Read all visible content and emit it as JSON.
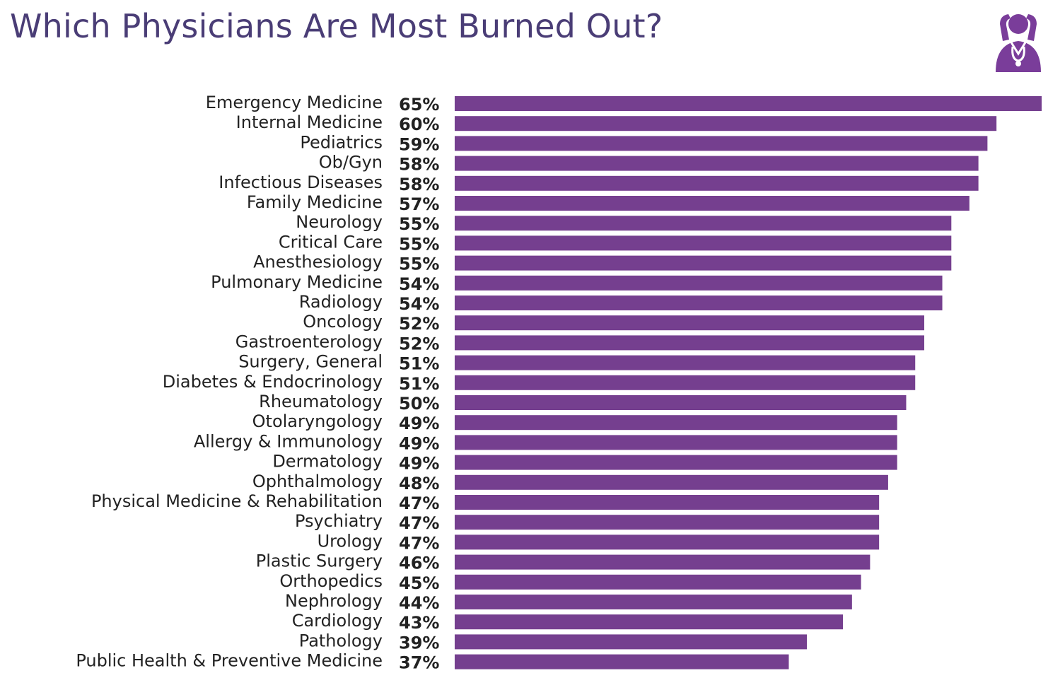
{
  "title": "Which Physicians Are Most Burned Out?",
  "icons": {
    "logo": "doctor-stethoscope-icon"
  },
  "colors": {
    "title": "#4a3d76",
    "bar": "#753f8f",
    "logo": "#7a3d9a",
    "text": "#222222"
  },
  "chart_data": {
    "type": "bar",
    "orientation": "horizontal",
    "title": "Which Physicians Are Most Burned Out?",
    "xlabel": "",
    "ylabel": "",
    "value_suffix": "%",
    "xlim": [
      0,
      65
    ],
    "grid": false,
    "legend": "none",
    "categories": [
      "Emergency Medicine",
      "Internal Medicine",
      "Pediatrics",
      "Ob/Gyn",
      "Infectious Diseases",
      "Family Medicine",
      "Neurology",
      "Critical Care",
      "Anesthesiology",
      "Pulmonary Medicine",
      "Radiology",
      "Oncology",
      "Gastroenterology",
      "Surgery, General",
      "Diabetes & Endocrinology",
      "Rheumatology",
      "Otolaryngology",
      "Allergy & Immunology",
      "Dermatology",
      "Ophthalmology",
      "Physical Medicine & Rehabilitation",
      "Psychiatry",
      "Urology",
      "Plastic Surgery",
      "Orthopedics",
      "Nephrology",
      "Cardiology",
      "Pathology",
      "Public Health & Preventive Medicine"
    ],
    "values": [
      65,
      60,
      59,
      58,
      58,
      57,
      55,
      55,
      55,
      54,
      54,
      52,
      52,
      51,
      51,
      50,
      49,
      49,
      49,
      48,
      47,
      47,
      47,
      46,
      45,
      44,
      43,
      39,
      37
    ],
    "value_labels": [
      "65%",
      "60%",
      "59%",
      "58%",
      "58%",
      "57%",
      "55%",
      "55%",
      "55%",
      "54%",
      "54%",
      "52%",
      "52%",
      "51%",
      "51%",
      "50%",
      "49%",
      "49%",
      "49%",
      "48%",
      "47%",
      "47%",
      "47%",
      "46%",
      "45%",
      "44%",
      "43%",
      "39%",
      "37%"
    ]
  }
}
